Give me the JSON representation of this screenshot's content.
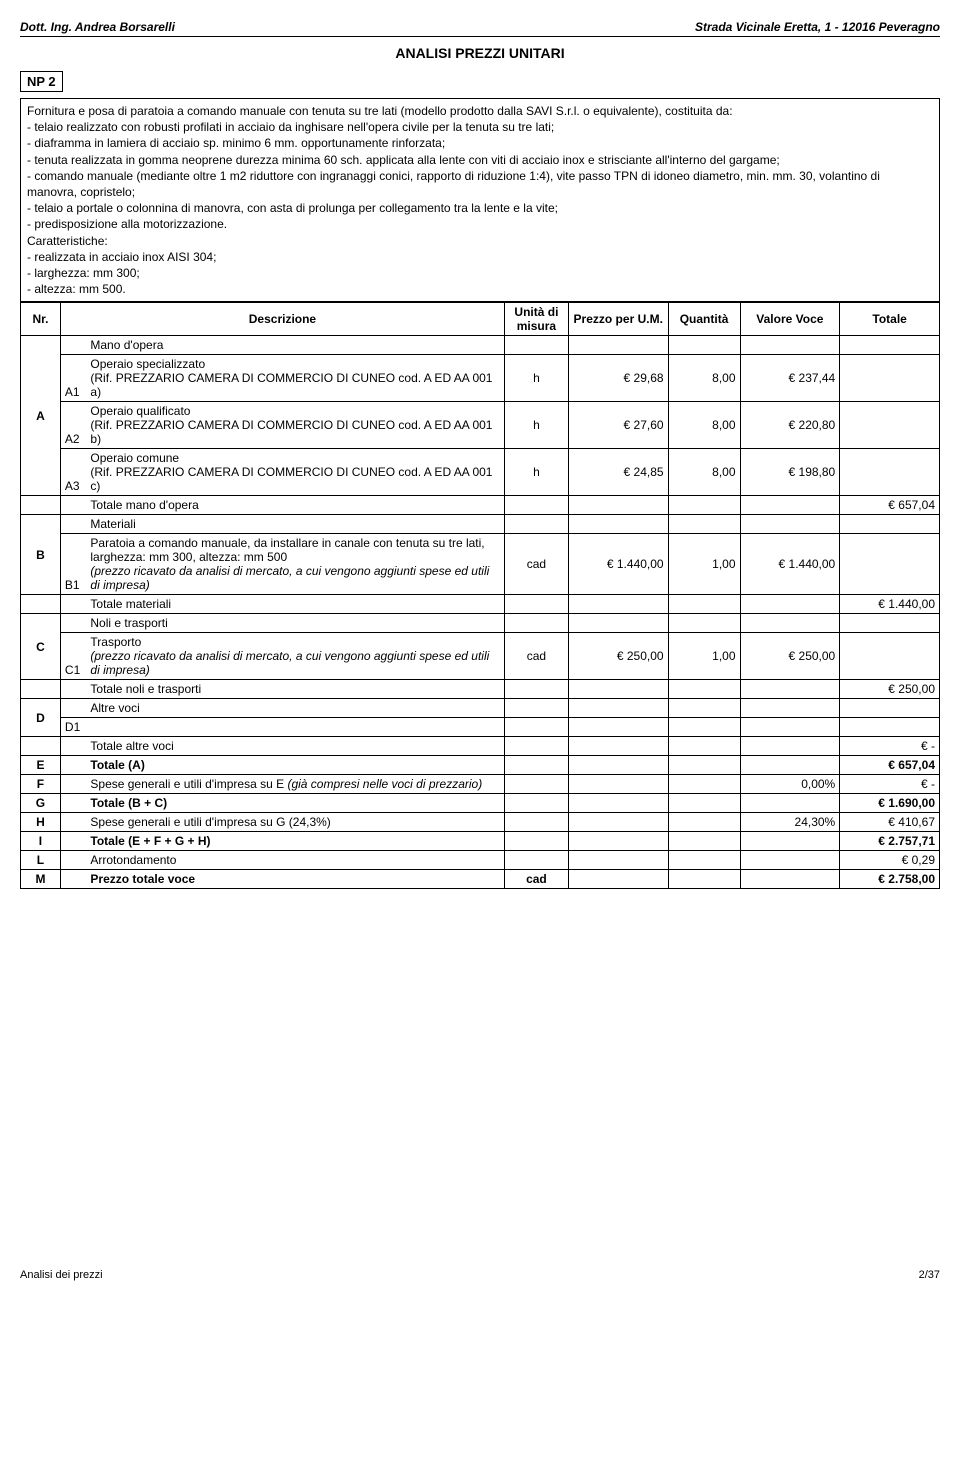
{
  "header": {
    "left": "Dott. Ing. Andrea Borsarelli",
    "right": "Strada Vicinale Eretta, 1 - 12016 Peveragno"
  },
  "title": "ANALISI PREZZI UNITARI",
  "np": "NP  2",
  "description": "Fornitura e posa di paratoia a comando manuale con tenuta su tre lati (modello prodotto dalla SAVI S.r.l. o equivalente), costituita da:\n- telaio realizzato con robusti profilati in acciaio da inghisare nell'opera civile per la tenuta su tre lati;\n- diaframma in lamiera di acciaio sp. minimo 6 mm. opportunamente rinforzata;\n- tenuta realizzata in gomma neoprene durezza minima 60 sch. applicata  alla lente con viti di acciaio inox e strisciante all'interno del gargame;\n- comando manuale (mediante oltre 1 m2 riduttore con ingranaggi conici, rapporto di riduzione 1:4), vite passo TPN di idoneo diametro, min. mm. 30, volantino di manovra, copristelo;\n- telaio a portale o colonnina di manovra, con asta di prolunga per collegamento tra la lente e la vite;\n- predisposizione alla motorizzazione.\nCaratteristiche:\n- realizzata in acciaio inox AISI 304;\n- larghezza: mm 300;\n- altezza: mm 500.",
  "columns": {
    "nr": "Nr.",
    "desc": "Descrizione",
    "um": "Unità di misura",
    "price": "Prezzo per U.M.",
    "qty": "Quantità",
    "val": "Valore Voce",
    "tot": "Totale"
  },
  "sections": {
    "A": {
      "head": "Mano d'opera",
      "rows": [
        {
          "sub": "A1",
          "desc": "Operaio specializzato\n(Rif. PREZZARIO CAMERA DI COMMERCIO DI CUNEO cod. A ED AA  001 a)",
          "um": "h",
          "price": "€               29,68",
          "qty": "8,00",
          "val": "€             237,44",
          "tot": ""
        },
        {
          "sub": "A2",
          "desc": "Operaio qualificato\n(Rif. PREZZARIO CAMERA DI COMMERCIO DI CUNEO cod. A ED AA  001 b)",
          "um": "h",
          "price": "€               27,60",
          "qty": "8,00",
          "val": "€             220,80",
          "tot": ""
        },
        {
          "sub": "A3",
          "desc": "Operaio comune\n(Rif. PREZZARIO CAMERA DI COMMERCIO DI CUNEO cod. A ED AA  001 c)",
          "um": "h",
          "price": "€               24,85",
          "qty": "8,00",
          "val": "€             198,80",
          "tot": ""
        }
      ],
      "totalLabel": "Totale mano d'opera",
      "totalValue": "€             657,04"
    },
    "B": {
      "head": "Materiali",
      "rows": [
        {
          "sub": "B1",
          "desc": "Paratoia a comando manuale, da installare in canale con tenuta su tre lati, larghezza: mm 300, altezza: mm 500\n(prezzo ricavato da analisi di mercato, a cui vengono aggiunti spese ed utili di impresa)",
          "descItalic": "(prezzo ricavato da analisi di mercato, a cui vengono aggiunti spese ed utili di impresa)",
          "um": "cad",
          "price": "€          1.440,00",
          "qty": "1,00",
          "val": "€          1.440,00",
          "tot": ""
        }
      ],
      "totalLabel": "Totale materiali",
      "totalValue": "€          1.440,00"
    },
    "C": {
      "head": "Noli e trasporti",
      "rows": [
        {
          "sub": "C1",
          "desc": "Trasporto\n(prezzo ricavato da analisi di mercato, a cui vengono aggiunti spese ed utili di impresa)",
          "um": "cad",
          "price": "€             250,00",
          "qty": "1,00",
          "val": "€             250,00",
          "tot": ""
        }
      ],
      "totalLabel": "Totale noli e trasporti",
      "totalValue": "€             250,00"
    },
    "D": {
      "head": "Altre voci",
      "rows": [
        {
          "sub": "D1",
          "desc": "",
          "um": "",
          "price": "",
          "qty": "",
          "val": "",
          "tot": ""
        }
      ],
      "totalLabel": "Totale altre voci",
      "totalValue": "€                    -"
    }
  },
  "summary": [
    {
      "code": "E",
      "label": "Totale (A)",
      "um": "",
      "qty": "",
      "val": "",
      "tot": "€             657,04",
      "bold": true
    },
    {
      "code": "F",
      "label": "Spese generali e utili d'impresa su E (già compresi nelle voci di prezzario)",
      "labelItalic": "(già compresi nelle voci di prezzario)",
      "um": "",
      "qty": "",
      "val": "0,00%",
      "tot": "€                    -",
      "bold": false
    },
    {
      "code": "G",
      "label": "Totale (B + C)",
      "um": "",
      "qty": "",
      "val": "",
      "tot": "€          1.690,00",
      "bold": true
    },
    {
      "code": "H",
      "label": "Spese generali e utili d'impresa su G (24,3%)",
      "um": "",
      "qty": "",
      "val": "24,30%",
      "tot": "€             410,67",
      "bold": false
    },
    {
      "code": "I",
      "label": "Totale (E + F + G + H)",
      "um": "",
      "qty": "",
      "val": "",
      "tot": "€          2.757,71",
      "bold": true
    },
    {
      "code": "L",
      "label": "Arrotondamento",
      "um": "",
      "qty": "",
      "val": "",
      "tot": "€                 0,29",
      "bold": false
    },
    {
      "code": "M",
      "label": "Prezzo totale voce",
      "um": "cad",
      "qty": "",
      "val": "",
      "tot": "€          2.758,00",
      "bold": true
    }
  ],
  "footer": {
    "left": "Analisi dei prezzi",
    "right": "2/37"
  },
  "colors": {
    "border": "#000000",
    "bg": "#ffffff",
    "text": "#000000"
  }
}
